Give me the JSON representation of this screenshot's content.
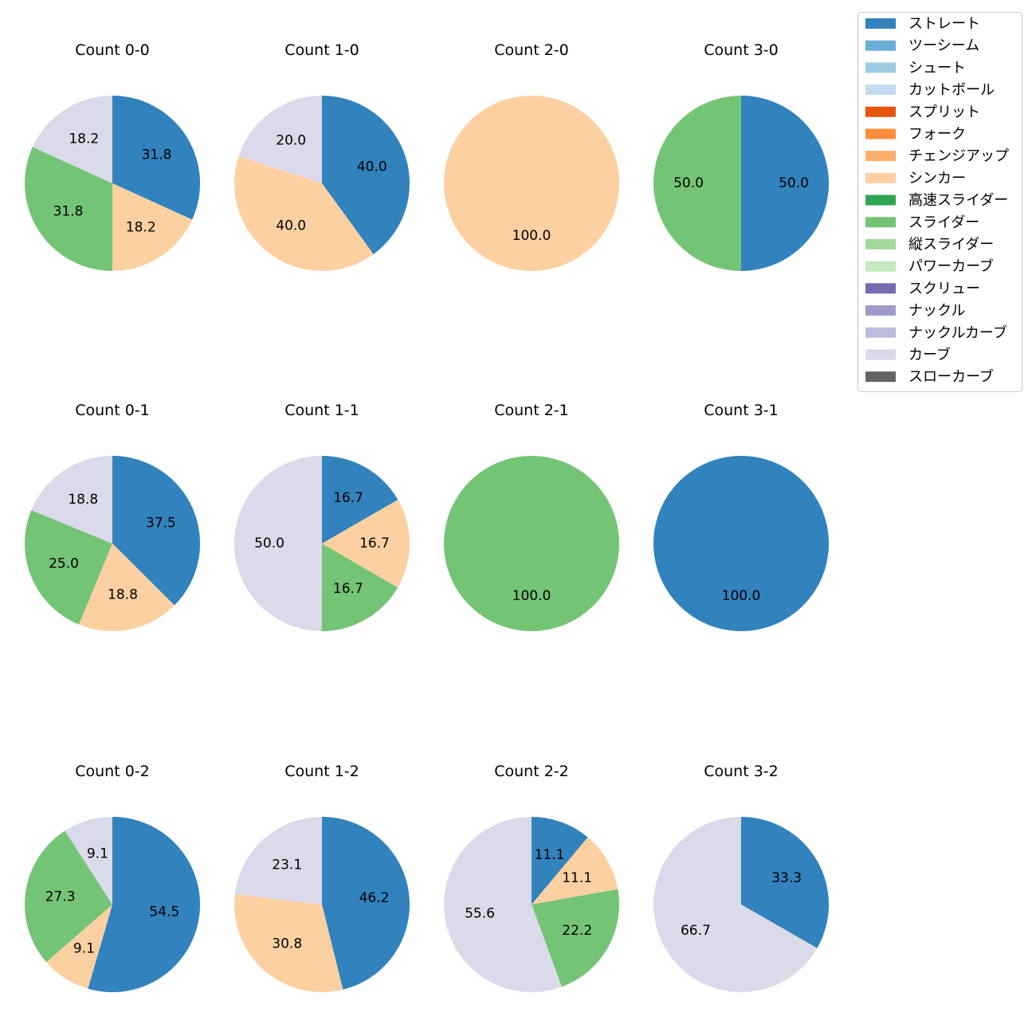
{
  "chart_data": {
    "type": "pie",
    "legend": {
      "placement": "top-right",
      "entries": [
        {
          "label": "ストレート",
          "color": "#3182bd"
        },
        {
          "label": "ツーシーム",
          "color": "#6baed6"
        },
        {
          "label": "シュート",
          "color": "#9ecae1"
        },
        {
          "label": "カットボール",
          "color": "#c6dbef"
        },
        {
          "label": "スプリット",
          "color": "#e6550d"
        },
        {
          "label": "フォーク",
          "color": "#fd8d3c"
        },
        {
          "label": "チェンジアップ",
          "color": "#fdae6b"
        },
        {
          "label": "シンカー",
          "color": "#fdd0a2"
        },
        {
          "label": "高速スライダー",
          "color": "#31a354"
        },
        {
          "label": "スライダー",
          "color": "#74c476"
        },
        {
          "label": "縦スライダー",
          "color": "#a1d99b"
        },
        {
          "label": "パワーカーブ",
          "color": "#c7e9c0"
        },
        {
          "label": "スクリュー",
          "color": "#756bb1"
        },
        {
          "label": "ナックル",
          "color": "#9e9ac8"
        },
        {
          "label": "ナックルカーブ",
          "color": "#bcbddc"
        },
        {
          "label": "カーブ",
          "color": "#dadaeb"
        },
        {
          "label": "スローカーブ",
          "color": "#636363"
        }
      ]
    },
    "pies": [
      {
        "title": "Count 0-0",
        "slices": [
          {
            "pitch": "ストレート",
            "value": 31.8,
            "label": "31.8"
          },
          {
            "pitch": "シンカー",
            "value": 18.2,
            "label": "18.2"
          },
          {
            "pitch": "スライダー",
            "value": 31.8,
            "label": "31.8"
          },
          {
            "pitch": "カーブ",
            "value": 18.2,
            "label": "18.2"
          }
        ]
      },
      {
        "title": "Count 1-0",
        "slices": [
          {
            "pitch": "ストレート",
            "value": 40.0,
            "label": "40.0"
          },
          {
            "pitch": "シンカー",
            "value": 40.0,
            "label": "40.0"
          },
          {
            "pitch": "カーブ",
            "value": 20.0,
            "label": "20.0"
          }
        ]
      },
      {
        "title": "Count 2-0",
        "slices": [
          {
            "pitch": "シンカー",
            "value": 100.0,
            "label": "100.0"
          }
        ]
      },
      {
        "title": "Count 3-0",
        "slices": [
          {
            "pitch": "ストレート",
            "value": 50.0,
            "label": "50.0"
          },
          {
            "pitch": "スライダー",
            "value": 50.0,
            "label": "50.0"
          }
        ]
      },
      {
        "title": "Count 0-1",
        "slices": [
          {
            "pitch": "ストレート",
            "value": 37.5,
            "label": "37.5"
          },
          {
            "pitch": "シンカー",
            "value": 18.8,
            "label": "18.8"
          },
          {
            "pitch": "スライダー",
            "value": 25.0,
            "label": "25.0"
          },
          {
            "pitch": "カーブ",
            "value": 18.8,
            "label": "18.8"
          }
        ]
      },
      {
        "title": "Count 1-1",
        "slices": [
          {
            "pitch": "ストレート",
            "value": 16.7,
            "label": "16.7"
          },
          {
            "pitch": "シンカー",
            "value": 16.7,
            "label": "16.7"
          },
          {
            "pitch": "スライダー",
            "value": 16.7,
            "label": "16.7"
          },
          {
            "pitch": "カーブ",
            "value": 50.0,
            "label": "50.0"
          }
        ]
      },
      {
        "title": "Count 2-1",
        "slices": [
          {
            "pitch": "スライダー",
            "value": 100.0,
            "label": "100.0"
          }
        ]
      },
      {
        "title": "Count 3-1",
        "slices": [
          {
            "pitch": "ストレート",
            "value": 100.0,
            "label": "100.0"
          }
        ]
      },
      {
        "title": "Count 0-2",
        "slices": [
          {
            "pitch": "ストレート",
            "value": 54.5,
            "label": "54.5"
          },
          {
            "pitch": "シンカー",
            "value": 9.1,
            "label": "9.1"
          },
          {
            "pitch": "スライダー",
            "value": 27.3,
            "label": "27.3"
          },
          {
            "pitch": "カーブ",
            "value": 9.1,
            "label": "9.1"
          }
        ]
      },
      {
        "title": "Count 1-2",
        "slices": [
          {
            "pitch": "ストレート",
            "value": 46.2,
            "label": "46.2"
          },
          {
            "pitch": "シンカー",
            "value": 30.8,
            "label": "30.8"
          },
          {
            "pitch": "カーブ",
            "value": 23.1,
            "label": "23.1"
          }
        ]
      },
      {
        "title": "Count 2-2",
        "slices": [
          {
            "pitch": "ストレート",
            "value": 11.1,
            "label": "11.1"
          },
          {
            "pitch": "シンカー",
            "value": 11.1,
            "label": "11.1"
          },
          {
            "pitch": "スライダー",
            "value": 22.2,
            "label": "22.2"
          },
          {
            "pitch": "カーブ",
            "value": 55.6,
            "label": "55.6"
          }
        ]
      },
      {
        "title": "Count 3-2",
        "slices": [
          {
            "pitch": "ストレート",
            "value": 33.3,
            "label": "33.3"
          },
          {
            "pitch": "カーブ",
            "value": 66.7,
            "label": "66.7"
          }
        ]
      }
    ]
  }
}
